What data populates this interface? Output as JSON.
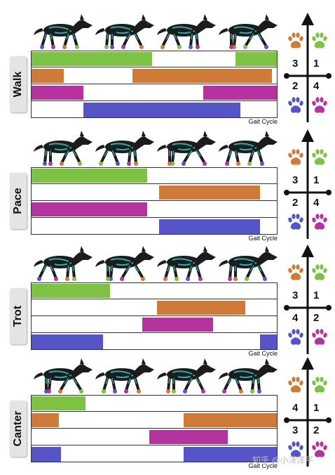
{
  "colors": {
    "leg1": "#7dc242",
    "leg2": "#d07a3a",
    "leg3": "#b5339e",
    "leg4": "#5555c7",
    "wolf_body": "#1c1c1c",
    "wolf_marking": "#2ec4c4"
  },
  "icons": [
    "wolf-silhouette",
    "paw-print",
    "up-arrow"
  ],
  "cycle_label": "Gait Cycle",
  "gaits": [
    {
      "name": "Walk",
      "legend": {
        "top_left": "3",
        "top_right": "1",
        "bottom_left": "2",
        "bottom_right": "4"
      },
      "rows": [
        {
          "color": "#7dc242",
          "segments": [
            [
              0,
              0.49
            ],
            [
              0.83,
              1.0
            ]
          ]
        },
        {
          "color": "#d07a3a",
          "segments": [
            [
              0,
              0.13
            ],
            [
              0.41,
              0.98
            ]
          ]
        },
        {
          "color": "#b5339e",
          "segments": [
            [
              0,
              0.21
            ],
            [
              0.7,
              1.0
            ]
          ]
        },
        {
          "color": "#5555c7",
          "segments": [
            [
              0.21,
              0.85
            ]
          ]
        }
      ]
    },
    {
      "name": "Pace",
      "legend": {
        "top_left": "3",
        "top_right": "1",
        "bottom_left": "2",
        "bottom_right": "4"
      },
      "rows": [
        {
          "color": "#7dc242",
          "segments": [
            [
              0,
              0.47
            ]
          ]
        },
        {
          "color": "#d07a3a",
          "segments": [
            [
              0.52,
              0.93
            ]
          ]
        },
        {
          "color": "#b5339e",
          "segments": [
            [
              0,
              0.47
            ]
          ]
        },
        {
          "color": "#5555c7",
          "segments": [
            [
              0.52,
              0.93
            ]
          ]
        }
      ]
    },
    {
      "name": "Trot",
      "legend": {
        "top_left": "3",
        "top_right": "1",
        "bottom_left": "4",
        "bottom_right": "2"
      },
      "rows": [
        {
          "color": "#7dc242",
          "segments": [
            [
              0,
              0.32
            ]
          ]
        },
        {
          "color": "#d07a3a",
          "segments": [
            [
              0.51,
              0.87
            ]
          ]
        },
        {
          "color": "#b5339e",
          "segments": [
            [
              0.45,
              0.74
            ]
          ]
        },
        {
          "color": "#5555c7",
          "segments": [
            [
              0,
              0.29
            ],
            [
              0.93,
              1.0
            ]
          ]
        }
      ]
    },
    {
      "name": "Canter",
      "legend": {
        "top_left": "4",
        "top_right": "1",
        "bottom_left": "3",
        "bottom_right": "2"
      },
      "rows": [
        {
          "color": "#7dc242",
          "segments": [
            [
              0,
              0.22
            ]
          ]
        },
        {
          "color": "#d07a3a",
          "segments": [
            [
              0,
              0.11
            ],
            [
              0.62,
              1.0
            ]
          ]
        },
        {
          "color": "#b5339e",
          "segments": [
            [
              0.48,
              0.8
            ]
          ]
        },
        {
          "color": "#5555c7",
          "segments": [
            [
              0,
              0.12
            ],
            [
              0.62,
              1.0
            ]
          ]
        }
      ]
    }
  ],
  "watermark": "知乎 @小泽泽平"
}
